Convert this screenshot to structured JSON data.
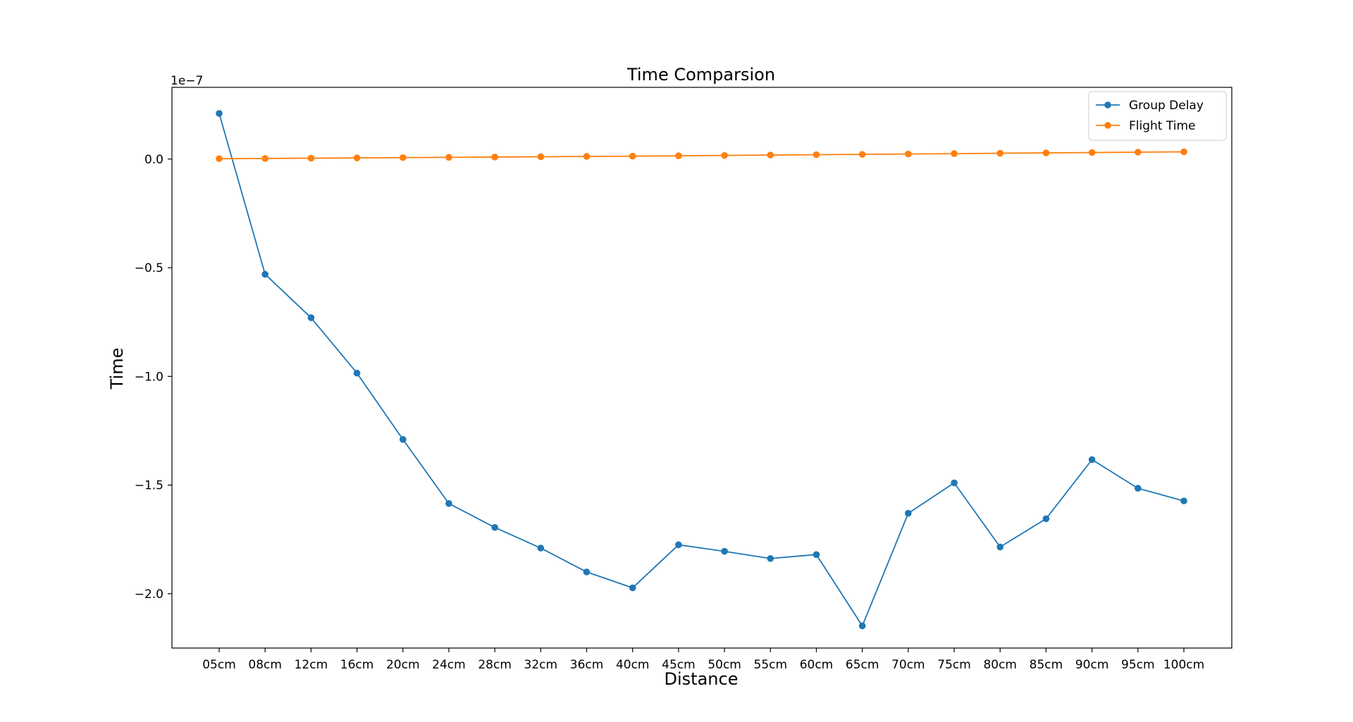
{
  "chart_data": {
    "type": "line",
    "title": "Time Comparsion",
    "xlabel": "Distance",
    "ylabel": "Time",
    "y_offset_label": "1e−7",
    "y_scale_factor": 1e-07,
    "categories": [
      "05cm",
      "08cm",
      "12cm",
      "16cm",
      "20cm",
      "24cm",
      "28cm",
      "32cm",
      "36cm",
      "40cm",
      "45cm",
      "50cm",
      "55cm",
      "60cm",
      "65cm",
      "70cm",
      "75cm",
      "80cm",
      "85cm",
      "90cm",
      "95cm",
      "100cm"
    ],
    "ylim": [
      -2.25e-07,
      3.3e-08
    ],
    "yticks": [
      0.0,
      -5e-08,
      -1e-07,
      -1.5e-07,
      -2e-07
    ],
    "ytick_labels": [
      "0.0",
      "−0.5",
      "−1.0",
      "−1.5",
      "−2.0"
    ],
    "grid": false,
    "legend_position": "top-right",
    "series": [
      {
        "name": "Group Delay",
        "color": "#1f77b4",
        "marker": "circle",
        "values": [
          2.1e-08,
          -5.3e-08,
          -7.3e-08,
          -9.85e-08,
          -1.29e-07,
          -1.585e-07,
          -1.695e-07,
          -1.79e-07,
          -1.9e-07,
          -1.973e-07,
          -1.775e-07,
          -1.805e-07,
          -1.838e-07,
          -1.82e-07,
          -2.148e-07,
          -1.63e-07,
          -1.49e-07,
          -1.785e-07,
          -1.655e-07,
          -1.383e-07,
          -1.515e-07,
          -1.573e-07
        ]
      },
      {
        "name": "Flight Time",
        "color": "#ff7f0e",
        "marker": "circle",
        "values": [
          1.7e-10,
          2.7e-10,
          4e-10,
          5.3e-10,
          6.7e-10,
          8e-10,
          9.3e-10,
          1.07e-09,
          1.2e-09,
          1.33e-09,
          1.5e-09,
          1.67e-09,
          1.83e-09,
          2e-09,
          2.17e-09,
          2.33e-09,
          2.5e-09,
          2.67e-09,
          2.83e-09,
          3e-09,
          3.17e-09,
          3.33e-09
        ]
      }
    ]
  }
}
